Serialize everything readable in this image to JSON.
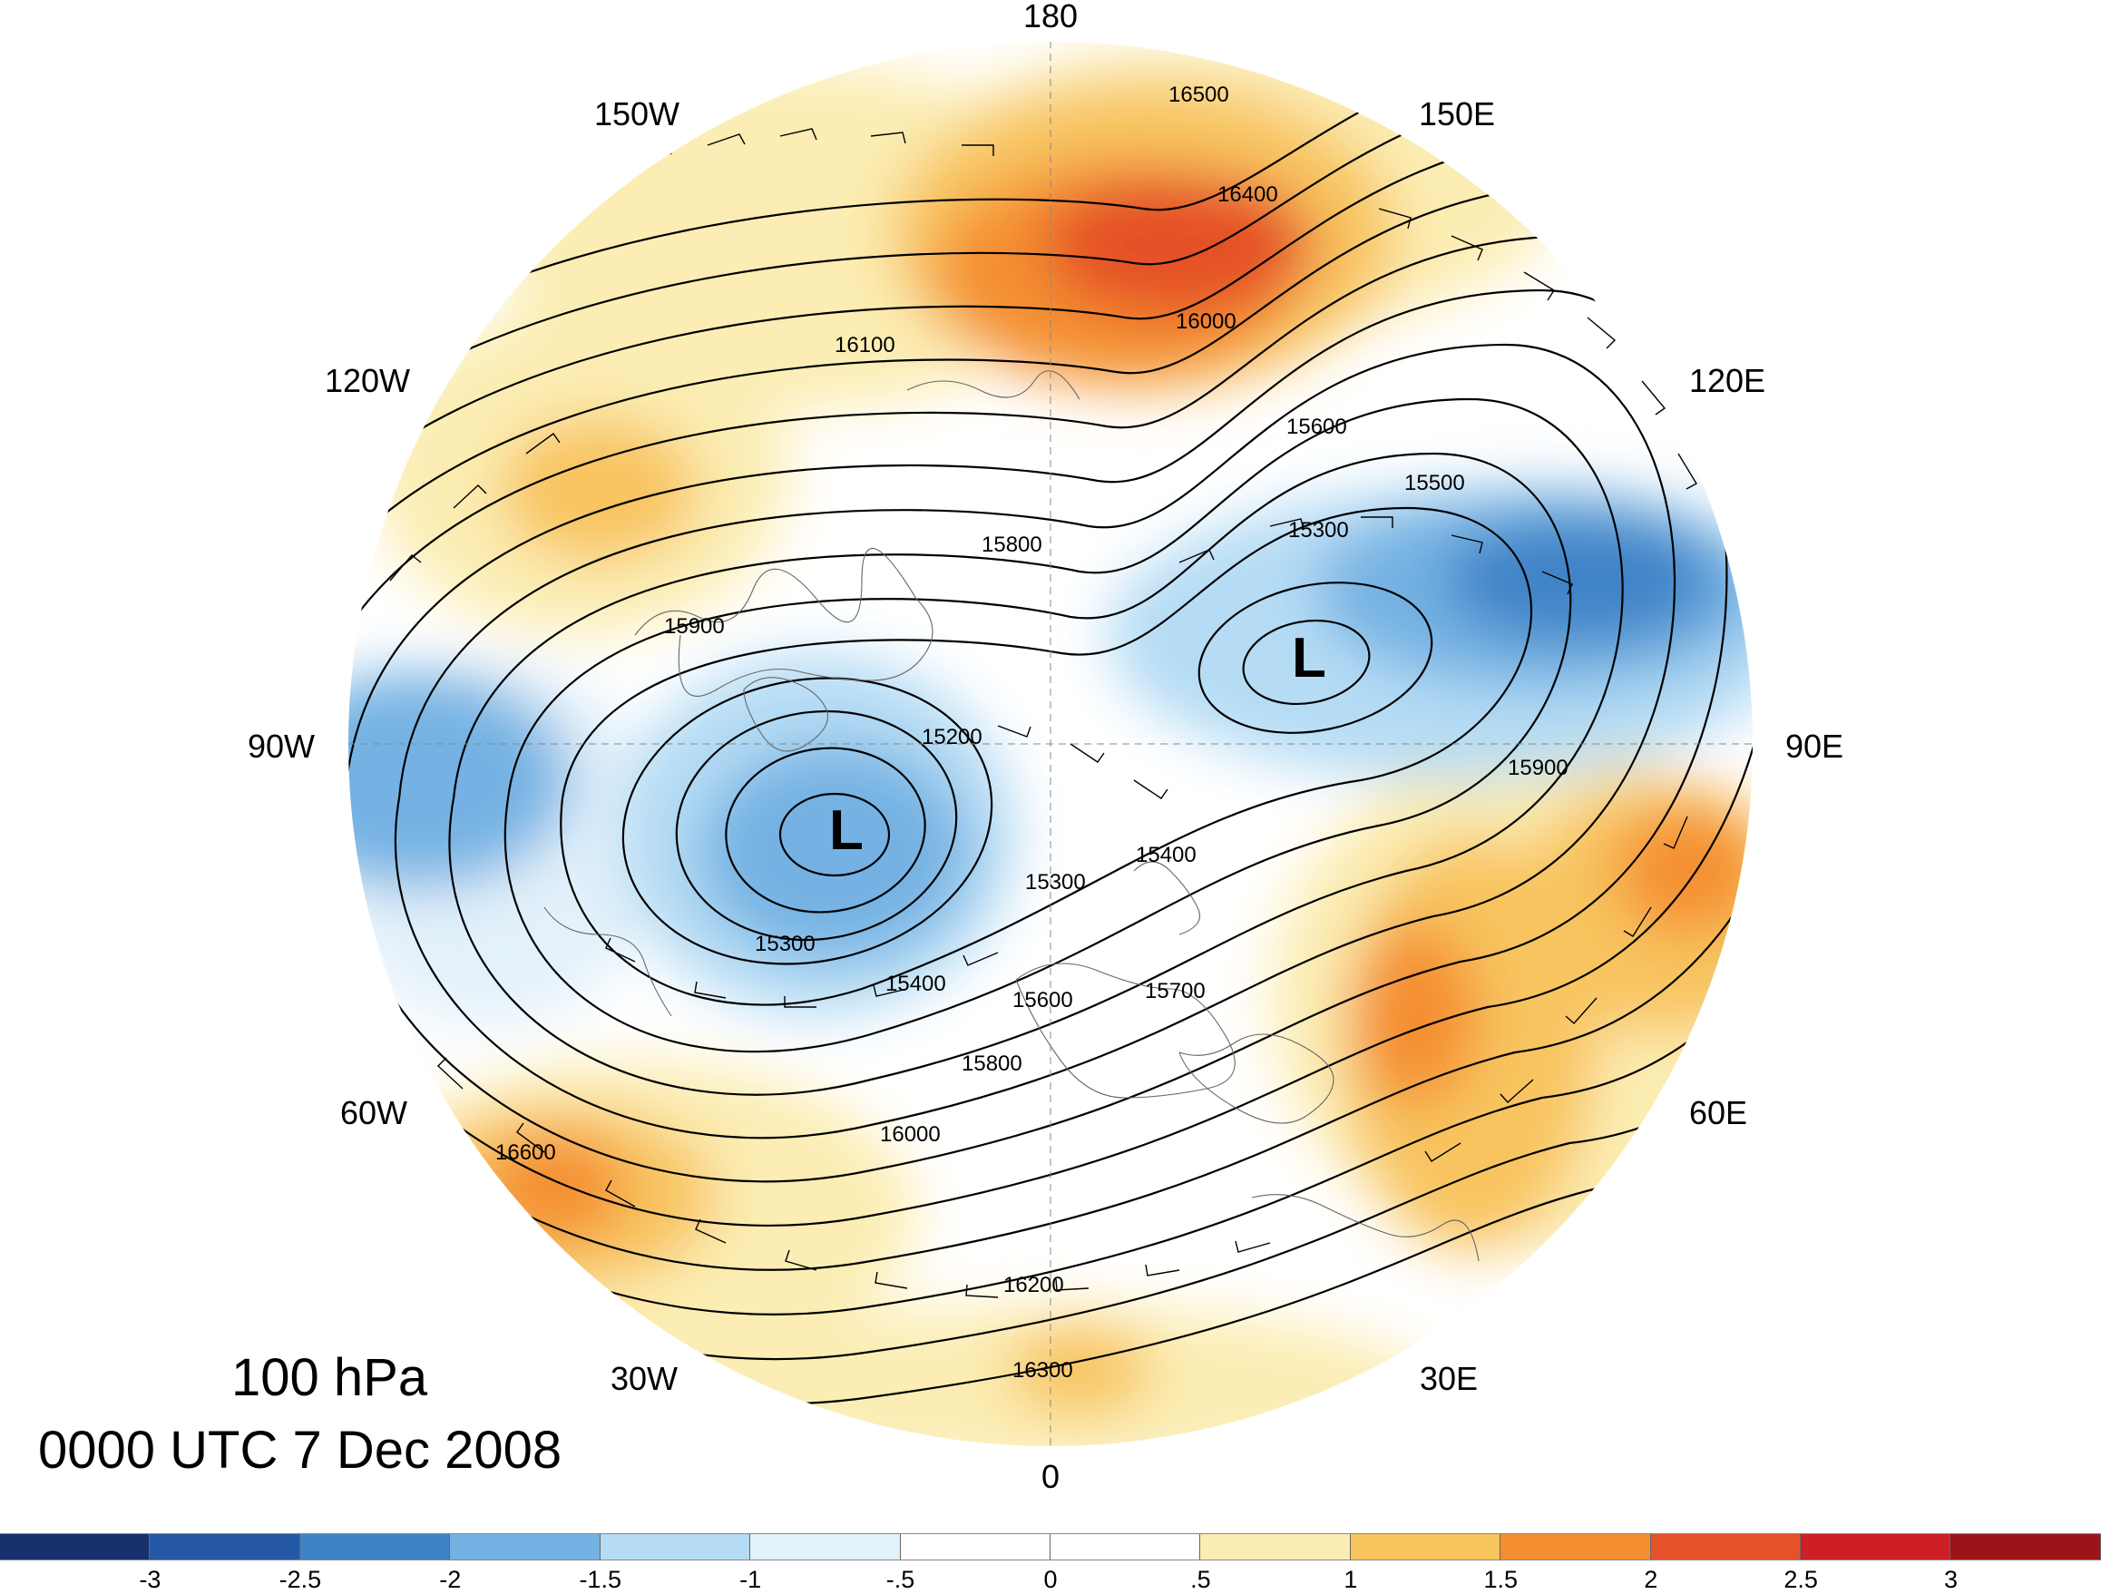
{
  "map": {
    "title_level": "100 hPa",
    "title_time": "0000 UTC 7 Dec 2008",
    "longitude_labels": [
      "180",
      "150E",
      "120E",
      "90E",
      "60E",
      "30E",
      "0",
      "30W",
      "60W",
      "90W",
      "120W",
      "150W"
    ],
    "low_symbol": "L",
    "lows": [
      "L",
      "L"
    ],
    "contour_labels": [
      "15200",
      "15300",
      "15300",
      "15300",
      "15400",
      "15400",
      "15500",
      "15600",
      "15600",
      "15700",
      "15800",
      "15800",
      "15900",
      "15900",
      "16000",
      "16000",
      "16100",
      "16200",
      "16300",
      "16400",
      "16500",
      "16600"
    ],
    "colors": {
      "background": "#ffffff",
      "contour": "#000000",
      "wind_barbs": "#000000",
      "coastline": "#666666"
    }
  },
  "colorbar": {
    "labels": [
      "-3",
      "-2.5",
      "-2",
      "-1.5",
      "-1",
      "-.5",
      "0",
      ".5",
      "1",
      "1.5",
      "2",
      "2.5",
      "3"
    ],
    "colors": [
      "#17306b",
      "#2458a6",
      "#3f83c7",
      "#75b2e3",
      "#b5dcf4",
      "#e3f1fa",
      "#ffffff",
      "#ffffff",
      "#fbedb3",
      "#f8c45e",
      "#f48f31",
      "#e55128",
      "#cf1f26",
      "#9d1418"
    ]
  }
}
